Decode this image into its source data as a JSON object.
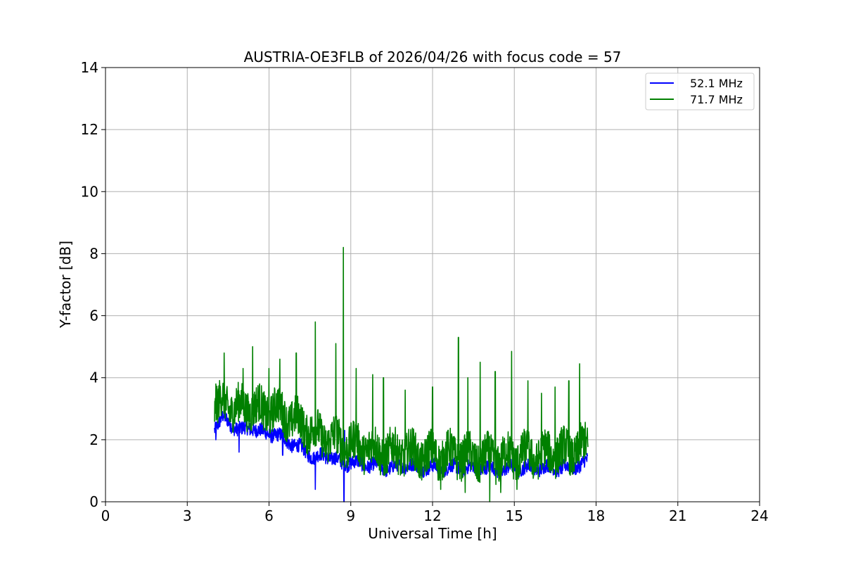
{
  "chart_data": {
    "type": "line",
    "title": "AUSTRIA-OE3FLB of 2026/04/26 with focus code = 57",
    "xlabel": "Universal Time [h]",
    "ylabel": "Y-factor [dB]",
    "xlim": [
      0,
      24
    ],
    "ylim": [
      0,
      14
    ],
    "xticks": [
      0,
      3,
      6,
      9,
      12,
      15,
      18,
      21,
      24
    ],
    "yticks": [
      0,
      2,
      4,
      6,
      8,
      10,
      12,
      14
    ],
    "xtick_labels": [
      "0",
      "3",
      "6",
      "9",
      "12",
      "15",
      "18",
      "21",
      "24"
    ],
    "ytick_labels": [
      "0",
      "2",
      "4",
      "6",
      "8",
      "10",
      "12",
      "14"
    ],
    "grid": true,
    "legend_position": "top-right",
    "series": [
      {
        "name": "52.1 MHz",
        "color": "#0000ff",
        "x": [
          4.0,
          4.3,
          4.6,
          5.0,
          5.4,
          5.8,
          6.2,
          6.6,
          7.0,
          7.4,
          7.7,
          8.0,
          8.4,
          8.7,
          9.0,
          9.4,
          9.8,
          10.2,
          10.6,
          11.0,
          11.5,
          12.0,
          12.5,
          13.0,
          13.5,
          14.0,
          14.5,
          15.0,
          15.5,
          16.0,
          16.5,
          17.0,
          17.4,
          17.7
        ],
        "y": [
          2.4,
          2.7,
          2.5,
          2.3,
          2.4,
          2.2,
          2.2,
          2.0,
          1.8,
          1.6,
          1.4,
          1.5,
          1.4,
          1.2,
          1.3,
          1.2,
          1.2,
          1.1,
          1.1,
          1.2,
          1.1,
          1.1,
          1.1,
          1.1,
          1.1,
          1.1,
          1.0,
          1.1,
          1.1,
          1.1,
          1.1,
          1.1,
          1.2,
          1.3
        ],
        "spikes": [
          [
            4.05,
            2.0
          ],
          [
            4.9,
            1.6
          ],
          [
            6.5,
            1.5
          ],
          [
            7.7,
            0.4
          ],
          [
            8.75,
            0.0
          ],
          [
            8.77,
            2.3
          ],
          [
            14.1,
            0.9
          ]
        ]
      },
      {
        "name": "71.7 MHz",
        "color": "#008000",
        "x": [
          4.0,
          4.3,
          4.6,
          5.0,
          5.4,
          5.8,
          6.2,
          6.6,
          7.0,
          7.4,
          7.7,
          8.0,
          8.4,
          8.7,
          9.0,
          9.4,
          9.8,
          10.2,
          10.6,
          11.0,
          11.5,
          12.0,
          12.5,
          13.0,
          13.5,
          14.0,
          14.5,
          15.0,
          15.5,
          16.0,
          16.5,
          17.0,
          17.4,
          17.7
        ],
        "y": [
          3.0,
          3.2,
          3.1,
          3.0,
          3.1,
          2.9,
          3.0,
          2.8,
          2.6,
          2.4,
          2.2,
          2.1,
          2.0,
          1.9,
          1.8,
          1.8,
          1.7,
          1.6,
          1.6,
          1.6,
          1.5,
          1.5,
          1.5,
          1.5,
          1.4,
          1.4,
          1.4,
          1.5,
          1.5,
          1.5,
          1.6,
          1.6,
          1.7,
          1.8
        ],
        "spikes": [
          [
            4.05,
            3.8
          ],
          [
            4.35,
            4.8
          ],
          [
            5.05,
            4.3
          ],
          [
            5.4,
            5.0
          ],
          [
            6.0,
            4.3
          ],
          [
            6.4,
            4.6
          ],
          [
            7.0,
            4.8
          ],
          [
            7.7,
            5.8
          ],
          [
            8.45,
            5.1
          ],
          [
            8.73,
            8.2
          ],
          [
            9.2,
            4.3
          ],
          [
            9.8,
            4.1
          ],
          [
            10.2,
            4.0
          ],
          [
            11.0,
            3.6
          ],
          [
            12.0,
            3.7
          ],
          [
            12.95,
            5.3
          ],
          [
            13.3,
            4.0
          ],
          [
            13.75,
            4.5
          ],
          [
            14.3,
            4.2
          ],
          [
            14.9,
            4.85
          ],
          [
            15.5,
            3.9
          ],
          [
            16.0,
            3.5
          ],
          [
            16.5,
            3.7
          ],
          [
            17.0,
            3.9
          ],
          [
            17.4,
            4.45
          ]
        ],
        "dips": [
          [
            12.3,
            0.4
          ],
          [
            13.2,
            0.3
          ],
          [
            14.1,
            0.0
          ],
          [
            14.5,
            0.3
          ],
          [
            15.1,
            0.4
          ]
        ]
      }
    ]
  }
}
